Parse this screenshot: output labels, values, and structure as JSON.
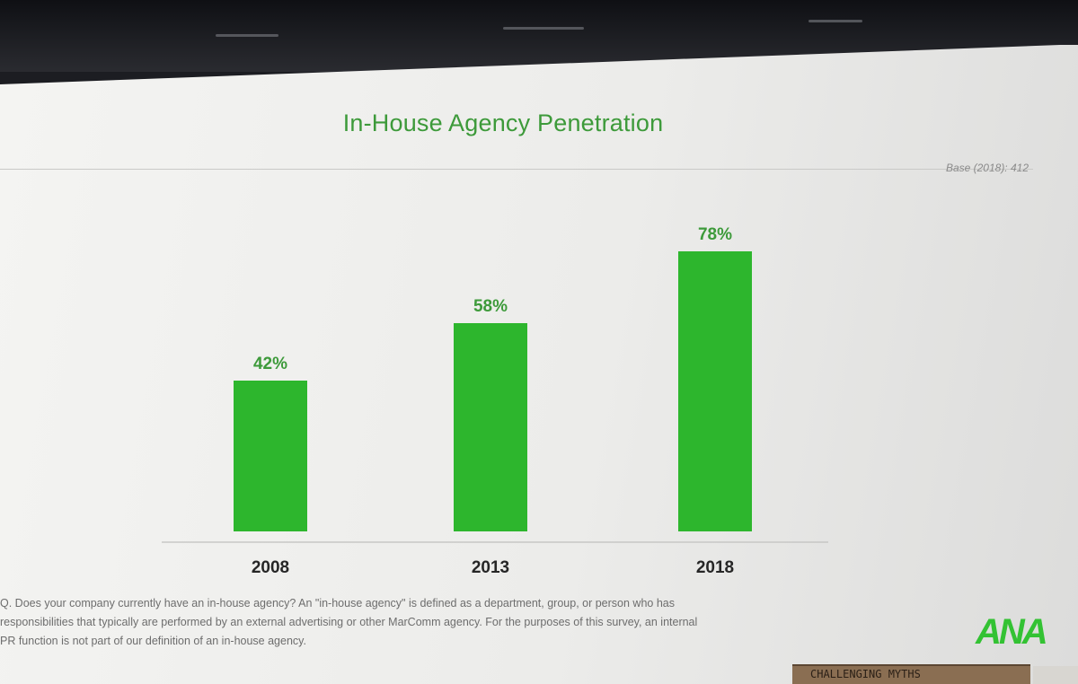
{
  "slide": {
    "title": "In-House Agency Penetration",
    "base_note": "Base (2018): 412",
    "footnote": "Q. Does your company currently have an in-house agency? An \"in-house agency\" is defined as a department, group, or person who has\nresponsibilities that typically are performed by an external advertising or other MarComm agency. For the purposes of this survey, an internal\nPR function is not part of our definition of an in-house agency.",
    "logo_text": "ANA",
    "sign_text": "CHALLENGING MYTHS"
  },
  "colors": {
    "bar": "#2db62d",
    "accent": "#3d9a3a"
  },
  "chart_data": {
    "type": "bar",
    "title": "In-House Agency Penetration",
    "categories": [
      "2008",
      "2013",
      "2018"
    ],
    "values": [
      42,
      58,
      78
    ],
    "value_labels": [
      "42%",
      "58%",
      "78%"
    ],
    "unit": "%",
    "xlabel": "",
    "ylabel": "",
    "ylim": [
      0,
      100
    ],
    "grid": false,
    "legend": "none"
  }
}
